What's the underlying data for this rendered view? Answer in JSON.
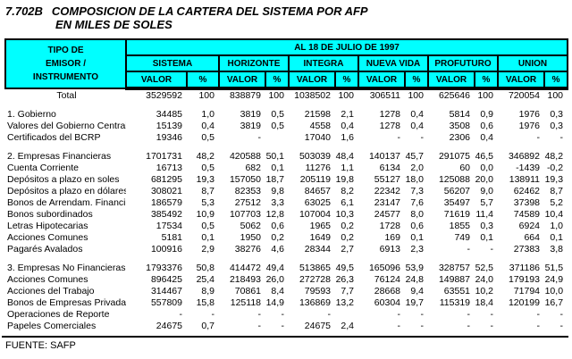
{
  "title": {
    "code": "7.702B",
    "line1": "COMPOSICION DE LA CARTERA DEL SISTEMA POR AFP",
    "line2": "EN MILES DE SOLES"
  },
  "table": {
    "corner_label_lines": [
      "TIPO DE",
      "EMISOR /",
      "INSTRUMENTO"
    ],
    "date_header": "AL 18 DE JULIO DE 1997",
    "groups": [
      "SISTEMA",
      "HORIZONTE",
      "INTEGRA",
      "NUEVA VIDA",
      "PROFUTURO",
      "UNION"
    ],
    "subheaders": {
      "valor": "VALOR",
      "pct": "%"
    },
    "rows": [
      {
        "label": "Total",
        "class": "total-row",
        "cells": [
          "3529592",
          "100",
          "838879",
          "100",
          "1038502",
          "100",
          "306511",
          "100",
          "625646",
          "100",
          "720054",
          "100"
        ]
      },
      {
        "label": "1. Gobierno",
        "gap_before": true,
        "cells": [
          "34485",
          "1,0",
          "3819",
          "0,5",
          "21598",
          "2,1",
          "1278",
          "0,4",
          "5814",
          "0,9",
          "1976",
          "0,3"
        ]
      },
      {
        "label": "Valores del Gobierno Central",
        "cells": [
          "15139",
          "0,4",
          "3819",
          "0,5",
          "4558",
          "0,4",
          "1278",
          "0,4",
          "3508",
          "0,6",
          "1976",
          "0,3"
        ]
      },
      {
        "label": "Certificados del BCRP",
        "cells": [
          "19346",
          "0,5",
          "-",
          "",
          "17040",
          "1,6",
          "-",
          "-",
          "2306",
          "0,4",
          "-",
          "-"
        ]
      },
      {
        "label": "2. Empresas Financieras",
        "gap_before": true,
        "cells": [
          "1701731",
          "48,2",
          "420588",
          "50,1",
          "503039",
          "48,4",
          "140137",
          "45,7",
          "291075",
          "46,5",
          "346892",
          "48,2"
        ]
      },
      {
        "label": "Cuenta Corriente",
        "cells": [
          "16713",
          "0,5",
          "682",
          "0,1",
          "11276",
          "1,1",
          "6134",
          "2,0",
          "60",
          "0,0",
          "-1439",
          "-0,2"
        ]
      },
      {
        "label": "Depósitos a plazo en soles",
        "cells": [
          "681295",
          "19,3",
          "157050",
          "18,7",
          "205119",
          "19,8",
          "55127",
          "18,0",
          "125088",
          "20,0",
          "138911",
          "19,3"
        ]
      },
      {
        "label": "Depósitos a plazo en dólares",
        "cells": [
          "308021",
          "8,7",
          "82353",
          "9,8",
          "84657",
          "8,2",
          "22342",
          "7,3",
          "56207",
          "9,0",
          "62462",
          "8,7"
        ]
      },
      {
        "label": "Bonos de Arrendam. Financiero",
        "cells": [
          "186579",
          "5,3",
          "27512",
          "3,3",
          "63025",
          "6,1",
          "23147",
          "7,6",
          "35497",
          "5,7",
          "37398",
          "5,2"
        ]
      },
      {
        "label": "Bonos subordinados",
        "cells": [
          "385492",
          "10,9",
          "107703",
          "12,8",
          "107004",
          "10,3",
          "24577",
          "8,0",
          "71619",
          "11,4",
          "74589",
          "10,4"
        ]
      },
      {
        "label": "Letras Hipotecarias",
        "cells": [
          "17534",
          "0,5",
          "5062",
          "0,6",
          "1965",
          "0,2",
          "1728",
          "0,6",
          "1855",
          "0,3",
          "6924",
          "1,0"
        ]
      },
      {
        "label": "Acciones Comunes",
        "cells": [
          "5181",
          "0,1",
          "1950",
          "0,2",
          "1649",
          "0,2",
          "169",
          "0,1",
          "749",
          "0,1",
          "664",
          "0,1"
        ]
      },
      {
        "label": "Pagarés Avalados",
        "cells": [
          "100916",
          "2,9",
          "38276",
          "4,6",
          "28344",
          "2,7",
          "6913",
          "2,3",
          "-",
          "-",
          "27383",
          "3,8"
        ]
      },
      {
        "label": "3. Empresas No Financieras",
        "gap_before": true,
        "cells": [
          "1793376",
          "50,8",
          "414472",
          "49,4",
          "513865",
          "49,5",
          "165096",
          "53,9",
          "328757",
          "52,5",
          "371186",
          "51,5"
        ]
      },
      {
        "label": "Acciones Comunes",
        "cells": [
          "896425",
          "25,4",
          "218493",
          "26,0",
          "272728",
          "26,3",
          "76124",
          "24,8",
          "149887",
          "24,0",
          "179193",
          "24,9"
        ]
      },
      {
        "label": "Acciones del Trabajo",
        "cells": [
          "314467",
          "8,9",
          "70861",
          "8,4",
          "79593",
          "7,7",
          "28668",
          "9,4",
          "63551",
          "10,2",
          "71794",
          "10,0"
        ]
      },
      {
        "label": "Bonos de Empresas Privadas",
        "cells": [
          "557809",
          "15,8",
          "125118",
          "14,9",
          "136869",
          "13,2",
          "60304",
          "19,7",
          "115319",
          "18,4",
          "120199",
          "16,7"
        ]
      },
      {
        "label": "Operaciones de Reporte",
        "cells": [
          "-",
          "-",
          "-",
          "-",
          "-",
          "",
          "-",
          "-",
          "-",
          "-",
          "-",
          "-"
        ]
      },
      {
        "label": "Papeles Comerciales",
        "cells": [
          "24675",
          "0,7",
          "-",
          "-",
          "24675",
          "2,4",
          "-",
          "-",
          "-",
          "-",
          "-",
          "-"
        ]
      }
    ]
  },
  "footer": {
    "source": "FUENTE: SAFP"
  },
  "colors": {
    "header_bg": "#00FFFF",
    "border": "#000000",
    "text": "#000000",
    "background": "#FFFFFF"
  }
}
